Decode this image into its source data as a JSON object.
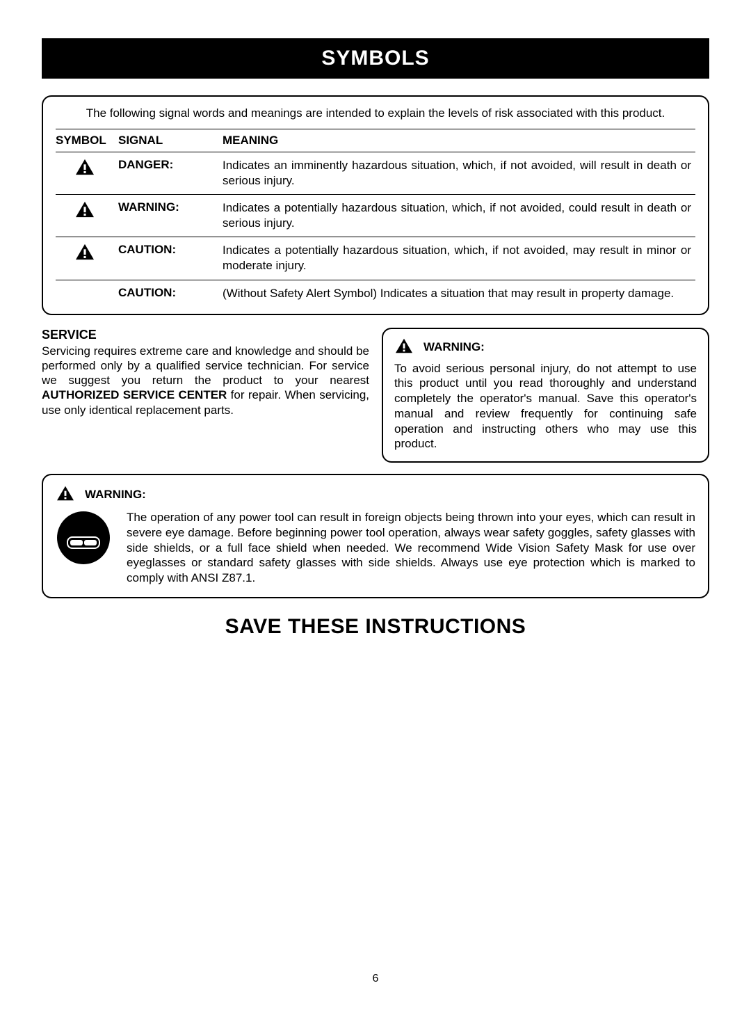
{
  "header": {
    "title": "SYMBOLS"
  },
  "symbolsBox": {
    "intro": "The following signal words and meanings are intended to explain the levels of risk associated with this product.",
    "columns": {
      "symbol": "SYMBOL",
      "signal": "SIGNAL",
      "meaning": "MEANING"
    },
    "rows": [
      {
        "hasIcon": true,
        "signal": "DANGER:",
        "meaning": "Indicates an imminently hazardous situation, which, if not avoided, will result in death or serious injury."
      },
      {
        "hasIcon": true,
        "signal": "WARNING:",
        "meaning": "Indicates a potentially hazardous situation, which, if not avoided, could result in death or serious injury."
      },
      {
        "hasIcon": true,
        "signal": "CAUTION:",
        "meaning": "Indicates a potentially hazardous situation, which, if not avoided, may result in minor or moderate injury."
      },
      {
        "hasIcon": false,
        "signal": "CAUTION:",
        "meaning": "(Without Safety Alert Symbol) Indicates a situation that may result in property damage."
      }
    ]
  },
  "service": {
    "heading": "SERVICE",
    "body_pre": "Servicing requires extreme care and knowledge and should be performed only by a qualified service technician. For service we suggest you return the product to your nearest ",
    "body_bold": "AUTHORIZED SERVICE CENTER",
    "body_post": " for repair. When servicing, use only identical replacement parts."
  },
  "warningRight": {
    "label": "WARNING:",
    "body": "To avoid serious personal injury, do not attempt to use this product until you read thoroughly and understand completely the operator's manual. Save this operator's manual and review frequently for continuing safe operation and instructing others who may use this product."
  },
  "eyeWarning": {
    "label": "WARNING:",
    "body": "The operation of any power tool can result in foreign objects being thrown into your eyes, which can result in severe eye damage. Before beginning power tool operation, always wear safety goggles, safety glasses with side shields, or a full face shield when needed. We recommend Wide Vision Safety Mask for use over eyeglasses or standard safety glasses with side shields. Always use eye protection which is marked to comply with ANSI Z87.1."
  },
  "footer": {
    "save": "SAVE THESE INSTRUCTIONS",
    "pageNumber": "6"
  },
  "style": {
    "colors": {
      "black": "#000000",
      "white": "#ffffff"
    }
  }
}
